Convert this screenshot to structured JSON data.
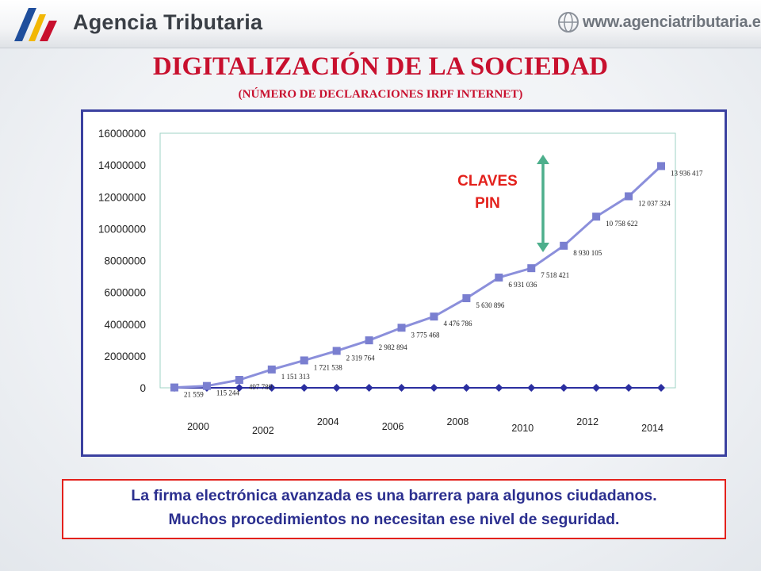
{
  "header": {
    "agency_name": "Agencia Tributaria",
    "website": "www.agenciatributaria.es"
  },
  "slide": {
    "title": "DIGITALIZACIÓN  DE LA SOCIEDAD",
    "subtitle": "(NÚMERO DE DECLARACIONES IRPF INTERNET)"
  },
  "colors": {
    "title_red": "#c8102e",
    "frame_blue": "#3b41a0",
    "series_main": "#8b8fdb",
    "series_marker": "#7a7fd0",
    "series_base": "#2b2fa0",
    "arrow_green": "#4daf8c",
    "annotation_red": "#e3211c",
    "note_border": "#e3211c",
    "note_text": "#2b2f8f"
  },
  "chart_data": {
    "type": "line",
    "title": "",
    "xlabel": "",
    "ylabel": "",
    "ylim": [
      0,
      16000000
    ],
    "y_ticks": [
      "0",
      "2000000",
      "4000000",
      "6000000",
      "8000000",
      "10000000",
      "12000000",
      "14000000",
      "16000000"
    ],
    "x_tick_labels": [
      "2000",
      "2002",
      "2004",
      "2006",
      "2008",
      "2010",
      "2012",
      "2014"
    ],
    "grid": false,
    "legend": "none",
    "annotation": {
      "line1": "CLAVES",
      "line2": "PIN",
      "arrow": "double-headed"
    },
    "series": [
      {
        "values": [
          21559,
          115244,
          497789,
          1151313,
          1721538,
          2319764,
          2982894,
          3775468,
          4476786,
          5630896,
          6931036,
          7518421,
          8930105,
          10758622,
          12037324,
          13936417
        ],
        "labels": [
          "21 559",
          "115 244",
          "497 789",
          "1 151 313",
          "1 721 538",
          "2 319 764",
          "2 982 894",
          "3 775 468",
          "4 476 786",
          "5 630 896",
          "6 931 036",
          "7 518 421",
          "8 930 105",
          "10 758 622",
          "12 037 324",
          "13 936 417"
        ],
        "marker": "square"
      },
      {
        "values": [
          0,
          0,
          0,
          0,
          0,
          0,
          0,
          0,
          0,
          0,
          0,
          0,
          0,
          0,
          0,
          0
        ],
        "marker": "diamond"
      }
    ]
  },
  "note": {
    "line1": "La  firma electrónica avanzada es una barrera para algunos ciudadanos.",
    "line2": "Muchos procedimientos no necesitan ese nivel de seguridad."
  }
}
